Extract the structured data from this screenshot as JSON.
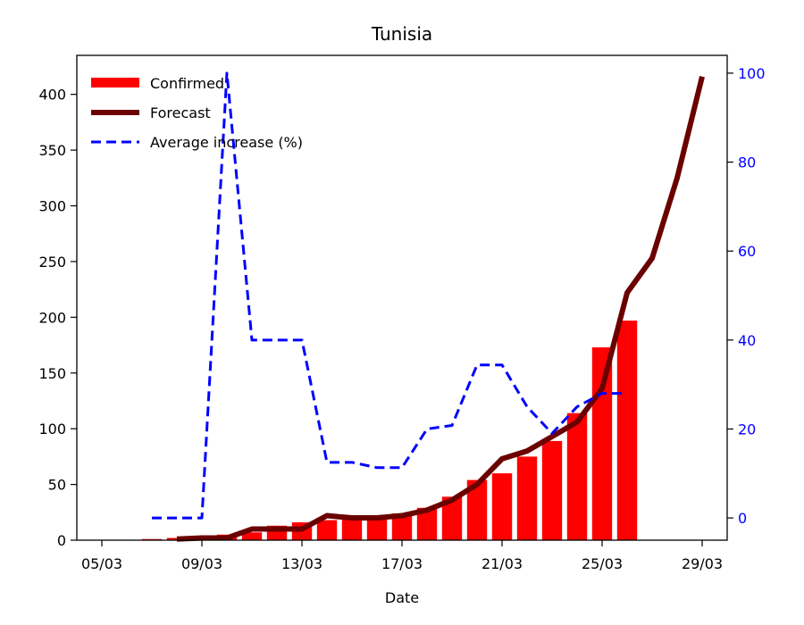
{
  "chart_data": {
    "type": "bar",
    "title": "Tunisia",
    "xlabel": "Date",
    "ylabel": "",
    "ylim": [
      0,
      435
    ],
    "y2lim": [
      -5,
      104
    ],
    "y2_color": "#0000ff",
    "yticks": [
      0,
      50,
      100,
      150,
      200,
      250,
      300,
      350,
      400
    ],
    "y2ticks": [
      0,
      20,
      40,
      60,
      80,
      100
    ],
    "xlim": [
      -1,
      25
    ],
    "xticks": [
      {
        "x": 0,
        "label": "05/03"
      },
      {
        "x": 4,
        "label": "09/03"
      },
      {
        "x": 8,
        "label": "13/03"
      },
      {
        "x": 12,
        "label": "17/03"
      },
      {
        "x": 16,
        "label": "21/03"
      },
      {
        "x": 20,
        "label": "25/03"
      },
      {
        "x": 24,
        "label": "29/03"
      }
    ],
    "legend_position": "top-left",
    "series": [
      {
        "name": "Confirmed",
        "type": "bar",
        "color": "#ff0000",
        "x": [
          2,
          3,
          4,
          5,
          6,
          7,
          8,
          9,
          10,
          11,
          12,
          13,
          14,
          15,
          16,
          17,
          18,
          19,
          20,
          21
        ],
        "values": [
          1,
          2,
          2,
          5,
          7,
          13,
          16,
          18,
          20,
          20,
          24,
          29,
          39,
          54,
          60,
          75,
          89,
          114,
          173,
          197
        ]
      },
      {
        "name": "Forecast",
        "type": "line",
        "color": "#6b0000",
        "x": [
          3,
          4,
          5,
          6,
          7,
          8,
          9,
          10,
          11,
          12,
          13,
          14,
          15,
          16,
          17,
          18,
          19,
          20,
          21,
          22,
          23,
          24
        ],
        "values": [
          1,
          2,
          2,
          10,
          10,
          10,
          22,
          20,
          20,
          22,
          27,
          36,
          50,
          73,
          80,
          93,
          106,
          136,
          222,
          253,
          325,
          416
        ]
      },
      {
        "name": "Average increase (%)",
        "type": "line",
        "axis": "right",
        "color": "#0000ff",
        "x": [
          2,
          3,
          4,
          5,
          6,
          7,
          8,
          9,
          10,
          11,
          12,
          13,
          14,
          15,
          16,
          17,
          18,
          19,
          20,
          21
        ],
        "values": [
          0,
          0,
          0,
          100,
          40,
          40,
          40,
          12.5,
          12.5,
          11.3,
          11.3,
          20,
          20.8,
          34.4,
          34.4,
          25,
          19,
          25,
          28,
          28
        ]
      }
    ]
  }
}
